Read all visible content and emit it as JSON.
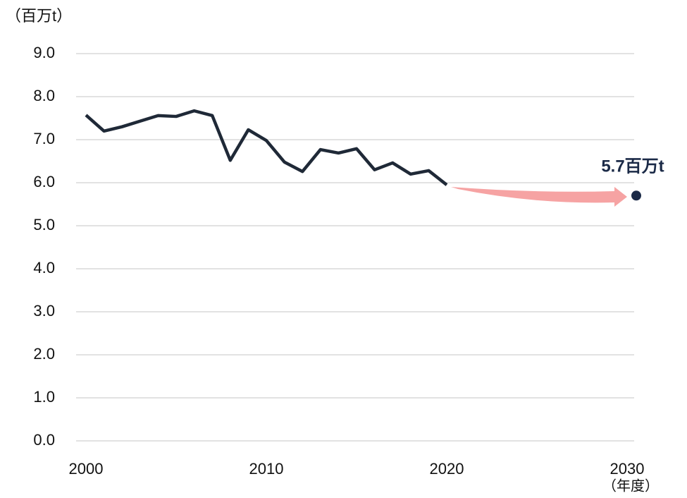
{
  "chart_data": {
    "type": "line",
    "y_unit_label": "（百万t）",
    "x_unit_label": "（年度）",
    "x": [
      2000,
      2001,
      2002,
      2003,
      2004,
      2005,
      2006,
      2007,
      2008,
      2009,
      2010,
      2011,
      2012,
      2013,
      2014,
      2015,
      2016,
      2017,
      2018,
      2019,
      2020
    ],
    "series": [
      {
        "color": "#1f2937",
        "values": [
          7.57,
          7.2,
          7.3,
          7.43,
          7.56,
          7.54,
          7.67,
          7.56,
          6.52,
          7.23,
          6.98,
          6.48,
          6.26,
          6.77,
          6.69,
          6.79,
          6.3,
          6.46,
          6.2,
          6.28,
          5.95
        ]
      }
    ],
    "target": {
      "x": 2030,
      "value": 5.7,
      "value_label": "5.7百万t",
      "color": "#1b2a47"
    },
    "xlim": [
      2000,
      2030
    ],
    "xticks": [
      2000,
      2010,
      2020,
      2030
    ],
    "ylim": [
      0,
      9
    ],
    "yticks": [
      {
        "value": 0,
        "label": "0.0"
      },
      {
        "value": 1,
        "label": "1.0"
      },
      {
        "value": 2,
        "label": "2.0"
      },
      {
        "value": 3,
        "label": "3.0"
      },
      {
        "value": 4,
        "label": "4.0"
      },
      {
        "value": 5,
        "label": "5.0"
      },
      {
        "value": 6,
        "label": "6.0"
      },
      {
        "value": 7,
        "label": "7.0"
      },
      {
        "value": 8,
        "label": "8.0"
      },
      {
        "value": 9,
        "label": "9.0"
      }
    ],
    "grid": true
  }
}
